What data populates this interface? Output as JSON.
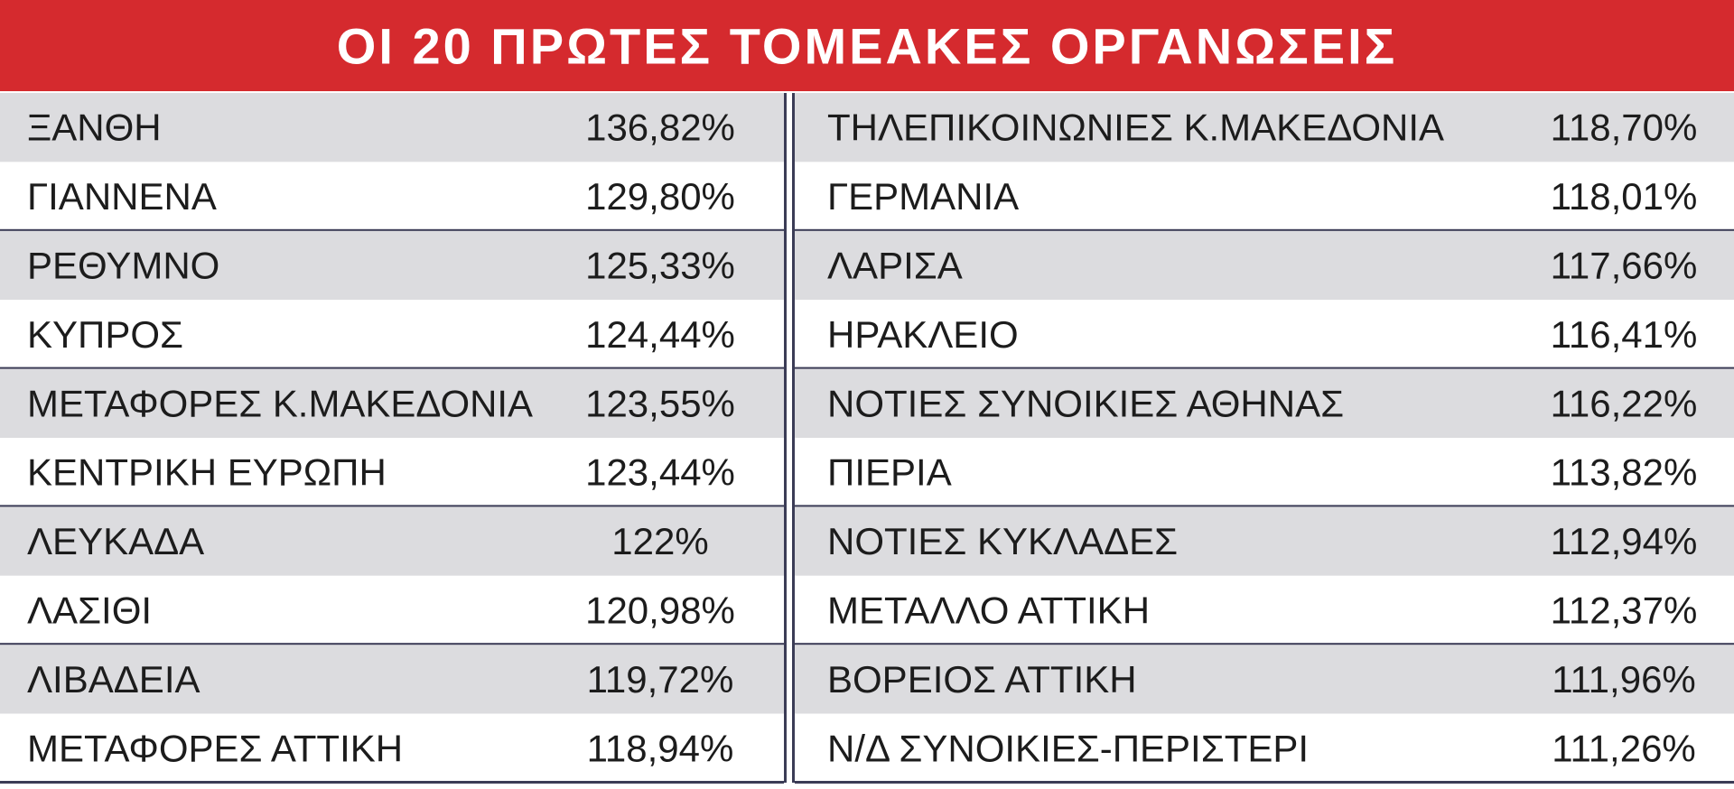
{
  "title": "ΟΙ 20 ΠΡΩΤΕΣ ΤΟΜΕΑΚΕΣ ΟΡΓΑΝΩΣΕΙΣ",
  "columns": [
    {
      "rows": [
        {
          "name": "ΞΑΝΘΗ",
          "value": "136,82%"
        },
        {
          "name": "ΓΙΑΝΝΕΝΑ",
          "value": "129,80%"
        },
        {
          "name": "ΡΕΘΥΜΝΟ",
          "value": "125,33%"
        },
        {
          "name": "ΚΥΠΡΟΣ",
          "value": "124,44%"
        },
        {
          "name": "ΜΕΤΑΦΟΡΕΣ Κ.ΜΑΚΕΔΟΝΙΑ",
          "value": "123,55%"
        },
        {
          "name": "ΚΕΝΤΡΙΚΗ ΕΥΡΩΠΗ",
          "value": "123,44%"
        },
        {
          "name": "ΛΕΥΚΑΔΑ",
          "value": "122%"
        },
        {
          "name": "ΛΑΣΙΘΙ",
          "value": "120,98%"
        },
        {
          "name": "ΛΙΒΑΔΕΙΑ",
          "value": "119,72%"
        },
        {
          "name": "ΜΕΤΑΦΟΡΕΣ ΑΤΤΙΚΗ",
          "value": "118,94%"
        }
      ]
    },
    {
      "rows": [
        {
          "name": "ΤΗΛΕΠΙΚΟΙΝΩΝΙΕΣ Κ.ΜΑΚΕΔΟΝΙΑ",
          "value": "118,70%"
        },
        {
          "name": "ΓΕΡΜΑΝΙΑ",
          "value": "118,01%"
        },
        {
          "name": "ΛΑΡΙΣΑ",
          "value": "117,66%"
        },
        {
          "name": "ΗΡΑΚΛΕΙΟ",
          "value": "116,41%"
        },
        {
          "name": "ΝΟΤΙΕΣ ΣΥΝΟΙΚΙΕΣ ΑΘΗΝΑΣ",
          "value": "116,22%"
        },
        {
          "name": "ΠΙΕΡΙΑ",
          "value": "113,82%"
        },
        {
          "name": "ΝΟΤΙΕΣ ΚΥΚΛΑΔΕΣ",
          "value": "112,94%"
        },
        {
          "name": "ΜΕΤΑΛΛΟ ΑΤΤΙΚΗ",
          "value": "112,37%"
        },
        {
          "name": "ΒΟΡΕΙΟΣ ΑΤΤΙΚΗ",
          "value": "111,96%"
        },
        {
          "name": "Ν/Δ ΣΥΝΟΙΚΙΕΣ-ΠΕΡΙΣΤΕΡΙ",
          "value": "111,26%"
        }
      ]
    }
  ]
}
